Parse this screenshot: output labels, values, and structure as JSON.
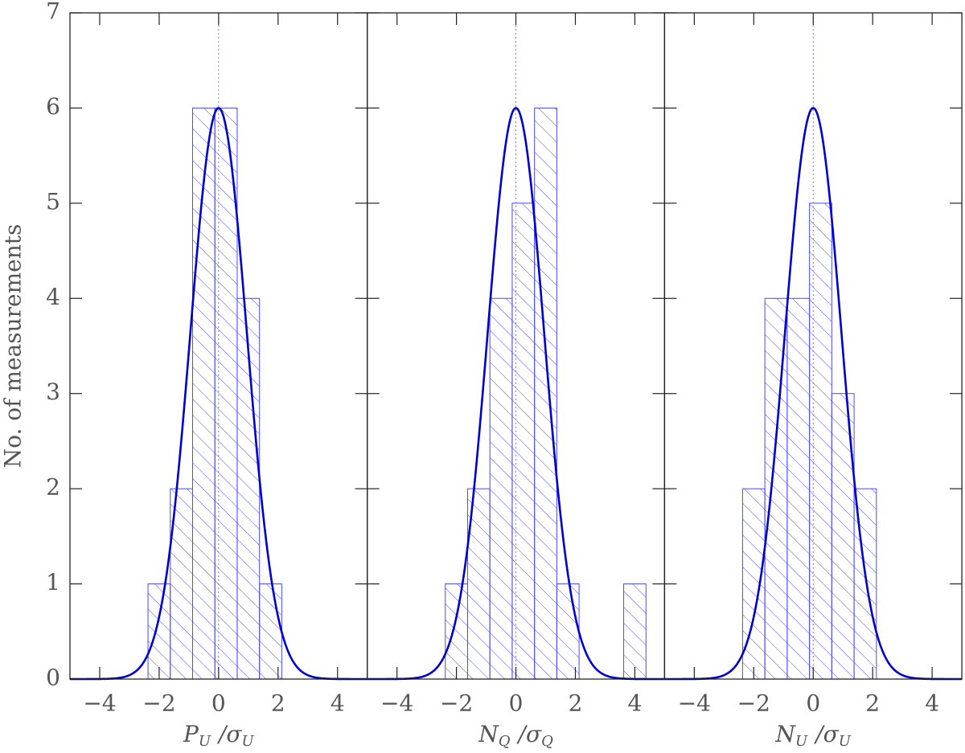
{
  "chart_data": [
    {
      "type": "histogram",
      "ylabel": "No. of measurements",
      "xlabel": {
        "symbol": "P",
        "symbol_sub": "U",
        "divisor": "/σ",
        "divisor_sub": "U"
      },
      "bins": [
        -2.375,
        -1.625,
        -0.875,
        -0.125,
        0.625,
        1.375,
        2.125
      ],
      "counts": [
        1,
        2,
        6,
        6,
        4,
        1
      ],
      "fit": {
        "amplitude": 6,
        "mean": 0,
        "sigma": 0.95
      },
      "hist_color": "#4a4aff",
      "curve_color": "#0000cc",
      "xlim": [
        -5,
        5
      ],
      "ylim": [
        0,
        7
      ],
      "xticks": [
        {
          "value": -4,
          "label": "−4"
        },
        {
          "value": -2,
          "label": "−2"
        },
        0,
        2,
        4
      ],
      "yticks": [
        0,
        1,
        2,
        3,
        4,
        5,
        6,
        7
      ]
    },
    {
      "type": "histogram",
      "xlabel": {
        "symbol": "N",
        "symbol_sub": "Q",
        "divisor": "/σ",
        "divisor_sub": "Q"
      },
      "bins": [
        -2.375,
        -1.625,
        -0.875,
        -0.125,
        0.625,
        1.375,
        2.125,
        2.875,
        3.625,
        4.375
      ],
      "counts": [
        1,
        2,
        4,
        5,
        6,
        1,
        0,
        0,
        1
      ],
      "fit": {
        "amplitude": 6,
        "mean": 0,
        "sigma": 0.95
      },
      "hist_color": "#4a4aff",
      "curve_color": "#0000cc",
      "xlim": [
        -5,
        5
      ],
      "ylim": [
        0,
        7
      ],
      "xticks": [
        {
          "value": -4,
          "label": "−4"
        },
        {
          "value": -2,
          "label": "−2"
        },
        0,
        2,
        4
      ]
    },
    {
      "type": "histogram",
      "xlabel": {
        "symbol": "N",
        "symbol_sub": "U",
        "divisor": "/σ",
        "divisor_sub": "U"
      },
      "bins": [
        -2.375,
        -1.625,
        -0.875,
        -0.125,
        0.625,
        1.375,
        2.125
      ],
      "counts": [
        2,
        4,
        4,
        5,
        3,
        2
      ],
      "fit": {
        "amplitude": 6,
        "mean": 0,
        "sigma": 0.95
      },
      "hist_color": "#4a4aff",
      "curve_color": "#0000cc",
      "xlim": [
        -5,
        5
      ],
      "ylim": [
        0,
        7
      ],
      "xticks": [
        {
          "value": -4,
          "label": "−4"
        },
        {
          "value": -2,
          "label": "−2"
        },
        0,
        2,
        4
      ]
    }
  ]
}
